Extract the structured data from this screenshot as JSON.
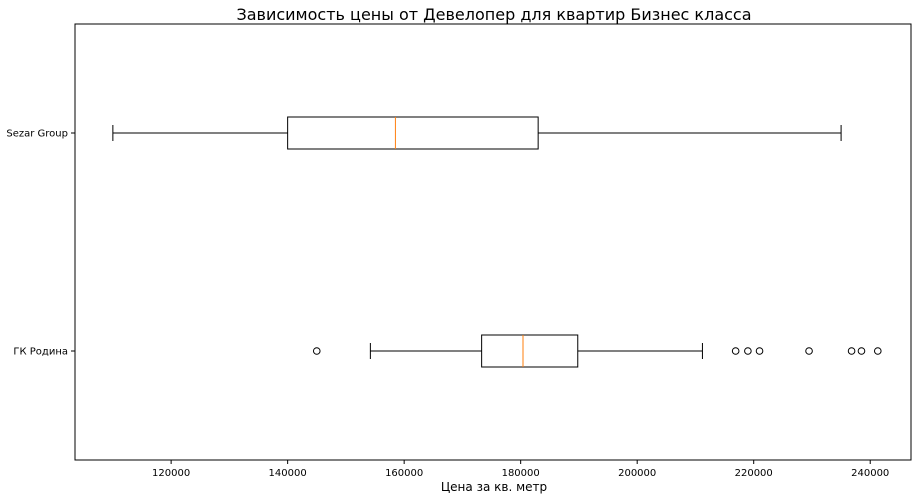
{
  "chart_data": {
    "type": "boxplot",
    "orientation": "horizontal",
    "title": "Зависимость цены от Девелопер для квартир Бизнес класса",
    "xlabel": "Цена за кв. метр",
    "ylabel": "",
    "xlim": [
      103500,
      247000
    ],
    "x_ticks": [
      120000,
      140000,
      160000,
      180000,
      200000,
      220000,
      240000
    ],
    "x_tick_labels": [
      "120000",
      "140000",
      "160000",
      "180000",
      "200000",
      "220000",
      "240000"
    ],
    "grid": false,
    "median_color": "#ff7f0e",
    "box_color": "#000000",
    "series": [
      {
        "name": "Sezar Group",
        "whisker_low": 110000,
        "q1": 140000,
        "median": 158500,
        "q3": 183000,
        "whisker_high": 235000,
        "outliers": []
      },
      {
        "name": "ГК Родина",
        "whisker_low": 154200,
        "q1": 173300,
        "median": 180400,
        "q3": 189800,
        "whisker_high": 211200,
        "outliers": [
          145000,
          216900,
          219000,
          221000,
          229500,
          236800,
          238500,
          241300
        ]
      }
    ]
  }
}
